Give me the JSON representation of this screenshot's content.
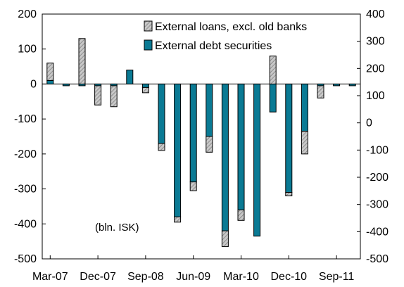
{
  "chart_data": {
    "type": "bar",
    "stacked": true,
    "categories": [
      "Mar-07",
      "Jun-07",
      "Sep-07",
      "Dec-07",
      "Mar-08",
      "Jun-08",
      "Sep-08",
      "Dec-08",
      "Mar-09",
      "Jun-09",
      "Sep-09",
      "Dec-09",
      "Mar-10",
      "Jun-10",
      "Sep-10",
      "Dec-10",
      "Mar-11",
      "Jun-11",
      "Sep-11",
      "Dec-11"
    ],
    "x_tick_labels": [
      "Mar-07",
      "Dec-07",
      "Sep-08",
      "Jun-09",
      "Mar-10",
      "Dec-10",
      "Sep-11"
    ],
    "series": [
      {
        "name": "External loans, excl. old banks",
        "color": "#c8c8c8",
        "pattern": "hatched",
        "values": [
          50,
          0,
          130,
          -55,
          -60,
          0,
          -15,
          -20,
          -15,
          -25,
          -45,
          -45,
          -30,
          0,
          80,
          -10,
          -65,
          -35,
          0,
          0
        ]
      },
      {
        "name": "External debt securities",
        "color": "#0a7a94",
        "values": [
          10,
          -5,
          -5,
          -5,
          -5,
          40,
          -10,
          -170,
          -380,
          -280,
          -150,
          -420,
          -360,
          -435,
          -80,
          -310,
          -135,
          -5,
          -5,
          -5
        ]
      }
    ],
    "ylim_left": [
      -500,
      200
    ],
    "yticks_left": [
      200,
      100,
      0,
      -100,
      -200,
      -300,
      -400,
      -500
    ],
    "ylim_right": [
      -500,
      400
    ],
    "yticks_right": [
      400,
      300,
      200,
      100,
      0,
      -100,
      -200,
      -300,
      -400,
      -500
    ],
    "annotation": "(bln. ISK)",
    "legend_position": "top-right",
    "grid": false
  },
  "colors": {
    "loans_fill": "#c8c8c8",
    "loans_hatch": "#7a7a7a",
    "securities_fill": "#0a7a94",
    "axis": "#000000"
  }
}
